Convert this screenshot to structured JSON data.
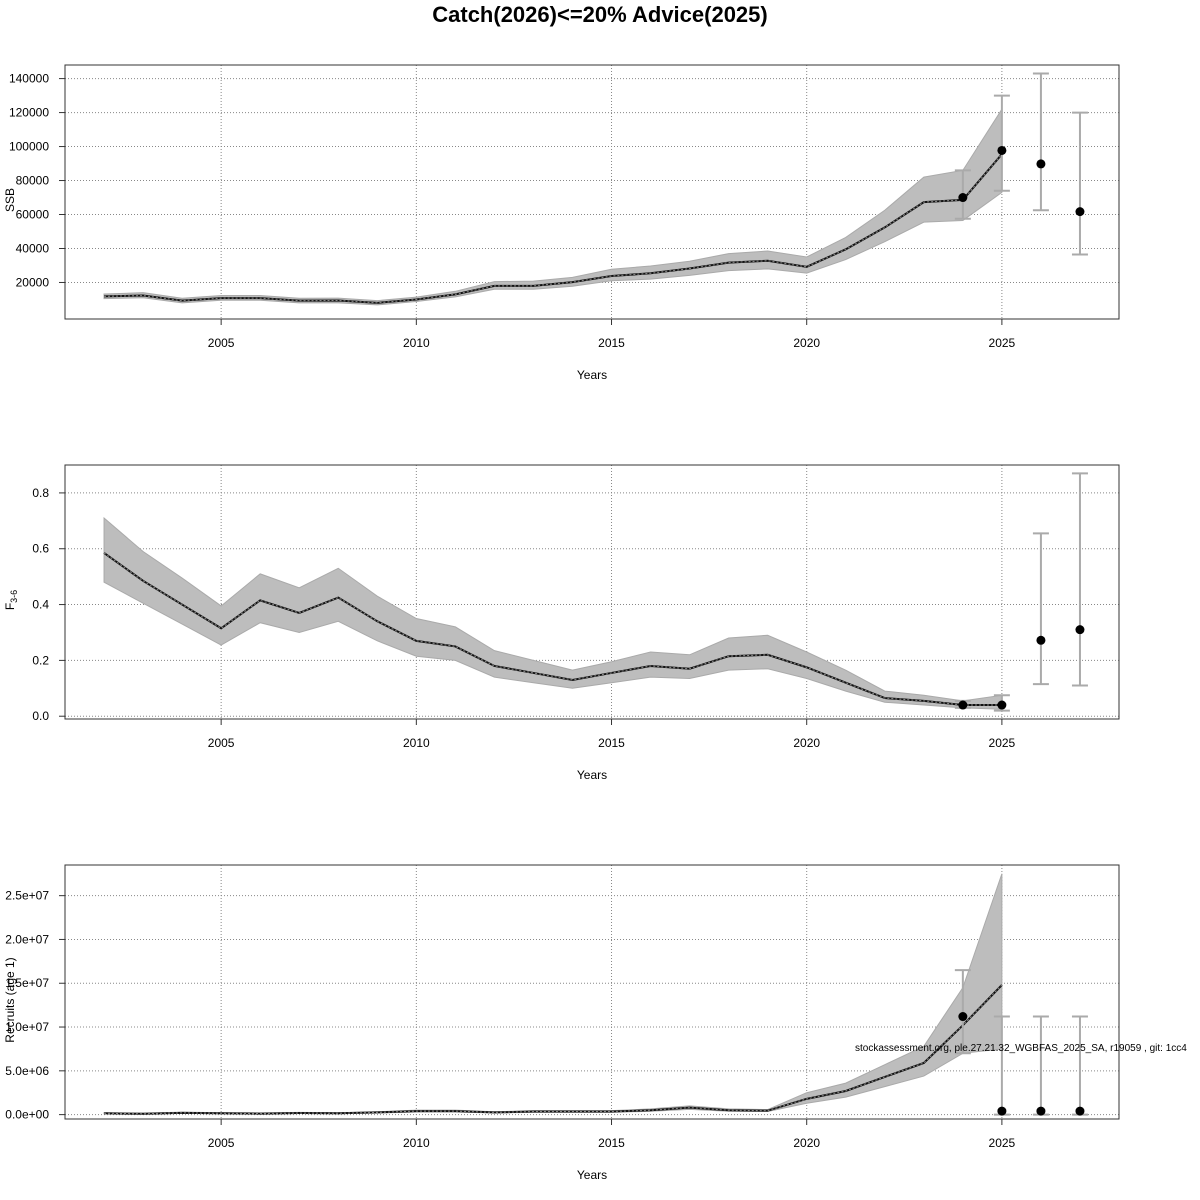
{
  "title": "Catch(2026)<=20% Advice(2025)",
  "footnote": "stockassessment.org, ple.27.21.32_WGBFAS_2025_SA, r19059 , git: 1cc4",
  "chart_data": [
    {
      "type": "line",
      "name": "ssb",
      "ylabel": "SSB",
      "xlabel": "Years",
      "xlim": [
        2001.0,
        2028.0
      ],
      "ylim": [
        -1500,
        148000
      ],
      "xticks": [
        2005,
        2010,
        2015,
        2020,
        2025
      ],
      "xtick_labels": [
        "2005",
        "2010",
        "2015",
        "2020",
        "2025"
      ],
      "yticks": [
        20000,
        40000,
        60000,
        80000,
        100000,
        120000,
        140000
      ],
      "ytick_labels": [
        "20000",
        "40000",
        "60000",
        "80000",
        "100000",
        "120000",
        "140000"
      ],
      "grid": true,
      "x": [
        2002,
        2003,
        2004,
        2005,
        2006,
        2007,
        2008,
        2009,
        2010,
        2011,
        2012,
        2013,
        2014,
        2015,
        2016,
        2017,
        2018,
        2019,
        2020,
        2021,
        2022,
        2023,
        2024,
        2025
      ],
      "estimate": [
        11800,
        12300,
        9300,
        10800,
        10800,
        9300,
        9400,
        8000,
        10000,
        13000,
        18000,
        18000,
        20200,
        23800,
        25400,
        28200,
        31700,
        32800,
        29200,
        39500,
        52400,
        67300,
        68600,
        95500
      ],
      "lower": [
        10500,
        11000,
        8000,
        9500,
        9500,
        8000,
        8000,
        6800,
        8800,
        11500,
        16000,
        16000,
        17800,
        21000,
        22000,
        24200,
        27000,
        28000,
        25500,
        33500,
        44000,
        55500,
        56500,
        73000
      ],
      "upper": [
        13200,
        14000,
        10700,
        12300,
        12300,
        10700,
        10800,
        9300,
        11400,
        14800,
        20500,
        20800,
        23000,
        27800,
        29700,
        32500,
        37000,
        38500,
        35000,
        46500,
        62500,
        82000,
        86000,
        122000
      ],
      "projections": [
        {
          "x": 2024,
          "y": 70000,
          "lower": 57500,
          "upper": 86000
        },
        {
          "x": 2025,
          "y": 97700,
          "lower": 74000,
          "upper": 130000
        },
        {
          "x": 2026,
          "y": 89800,
          "lower": 62500,
          "upper": 143000
        },
        {
          "x": 2027,
          "y": 61700,
          "lower": 36500,
          "upper": 120000
        }
      ]
    },
    {
      "type": "line",
      "name": "fbar",
      "ylabel": "F",
      "ylabel_sub": "3-6",
      "xlabel": "Years",
      "xlim": [
        2001.0,
        2028.0
      ],
      "ylim": [
        -0.01,
        0.9
      ],
      "xticks": [
        2005,
        2010,
        2015,
        2020,
        2025
      ],
      "xtick_labels": [
        "2005",
        "2010",
        "2015",
        "2020",
        "2025"
      ],
      "yticks": [
        0.0,
        0.2,
        0.4,
        0.6,
        0.8
      ],
      "ytick_labels": [
        "0.0",
        "0.2",
        "0.4",
        "0.6",
        "0.8"
      ],
      "grid": true,
      "x": [
        2002,
        2003,
        2004,
        2005,
        2006,
        2007,
        2008,
        2009,
        2010,
        2011,
        2012,
        2013,
        2014,
        2015,
        2016,
        2017,
        2018,
        2019,
        2020,
        2021,
        2022,
        2023,
        2024,
        2025
      ],
      "estimate": [
        0.585,
        0.485,
        0.4,
        0.315,
        0.415,
        0.37,
        0.425,
        0.34,
        0.27,
        0.25,
        0.18,
        0.155,
        0.13,
        0.155,
        0.18,
        0.17,
        0.215,
        0.22,
        0.175,
        0.12,
        0.065,
        0.055,
        0.04,
        0.04
      ],
      "lower": [
        0.48,
        0.405,
        0.33,
        0.255,
        0.335,
        0.3,
        0.34,
        0.27,
        0.215,
        0.2,
        0.14,
        0.12,
        0.1,
        0.12,
        0.14,
        0.135,
        0.165,
        0.17,
        0.135,
        0.09,
        0.05,
        0.04,
        0.03,
        0.025
      ],
      "upper": [
        0.71,
        0.59,
        0.495,
        0.395,
        0.51,
        0.46,
        0.53,
        0.43,
        0.35,
        0.32,
        0.235,
        0.2,
        0.165,
        0.195,
        0.23,
        0.22,
        0.28,
        0.29,
        0.23,
        0.165,
        0.09,
        0.075,
        0.055,
        0.075
      ],
      "projections": [
        {
          "x": 2024,
          "y": 0.04,
          "lower": 0.03,
          "upper": 0.055
        },
        {
          "x": 2025,
          "y": 0.04,
          "lower": 0.02,
          "upper": 0.075
        },
        {
          "x": 2026,
          "y": 0.272,
          "lower": 0.115,
          "upper": 0.655
        },
        {
          "x": 2027,
          "y": 0.31,
          "lower": 0.11,
          "upper": 0.87
        }
      ]
    },
    {
      "type": "line",
      "name": "recruits",
      "ylabel": "Recruits (age 1)",
      "xlabel": "Years",
      "xlim": [
        2001.0,
        2028.0
      ],
      "ylim": [
        -500000,
        28500000
      ],
      "xticks": [
        2005,
        2010,
        2015,
        2020,
        2025
      ],
      "xtick_labels": [
        "2005",
        "2010",
        "2015",
        "2020",
        "2025"
      ],
      "yticks": [
        0,
        5000000,
        10000000,
        15000000,
        20000000,
        25000000
      ],
      "ytick_labels": [
        "0.0e+00",
        "5.0e+06",
        "1.0e+07",
        "1.5e+07",
        "2.0e+07",
        "2.5e+07"
      ],
      "grid": true,
      "x": [
        2002,
        2003,
        2004,
        2005,
        2006,
        2007,
        2008,
        2009,
        2010,
        2011,
        2012,
        2013,
        2014,
        2015,
        2016,
        2017,
        2018,
        2019,
        2020,
        2021,
        2022,
        2023,
        2024,
        2025
      ],
      "estimate": [
        150000,
        100000,
        200000,
        150000,
        120000,
        180000,
        150000,
        250000,
        400000,
        400000,
        250000,
        350000,
        350000,
        350000,
        500000,
        800000,
        500000,
        450000,
        1800000,
        2700000,
        4300000,
        5900000,
        10200000,
        14800000
      ],
      "lower": [
        100000,
        60000,
        150000,
        100000,
        80000,
        130000,
        100000,
        180000,
        300000,
        300000,
        180000,
        260000,
        260000,
        260000,
        380000,
        600000,
        380000,
        350000,
        1300000,
        2000000,
        3200000,
        4400000,
        7000000,
        7500000
      ],
      "upper": [
        220000,
        150000,
        280000,
        220000,
        180000,
        250000,
        220000,
        330000,
        520000,
        520000,
        330000,
        450000,
        450000,
        450000,
        650000,
        1000000,
        650000,
        580000,
        2500000,
        3600000,
        5700000,
        7800000,
        14500000,
        27500000
      ],
      "projections": [
        {
          "x": 2024,
          "y": 11200000,
          "lower": 7000000,
          "upper": 16500000
        },
        {
          "x": 2025,
          "y": 400000,
          "lower": 0,
          "upper": 11200000
        },
        {
          "x": 2026,
          "y": 400000,
          "lower": 0,
          "upper": 11200000
        },
        {
          "x": 2027,
          "y": 400000,
          "lower": 0,
          "upper": 11200000
        }
      ]
    }
  ]
}
